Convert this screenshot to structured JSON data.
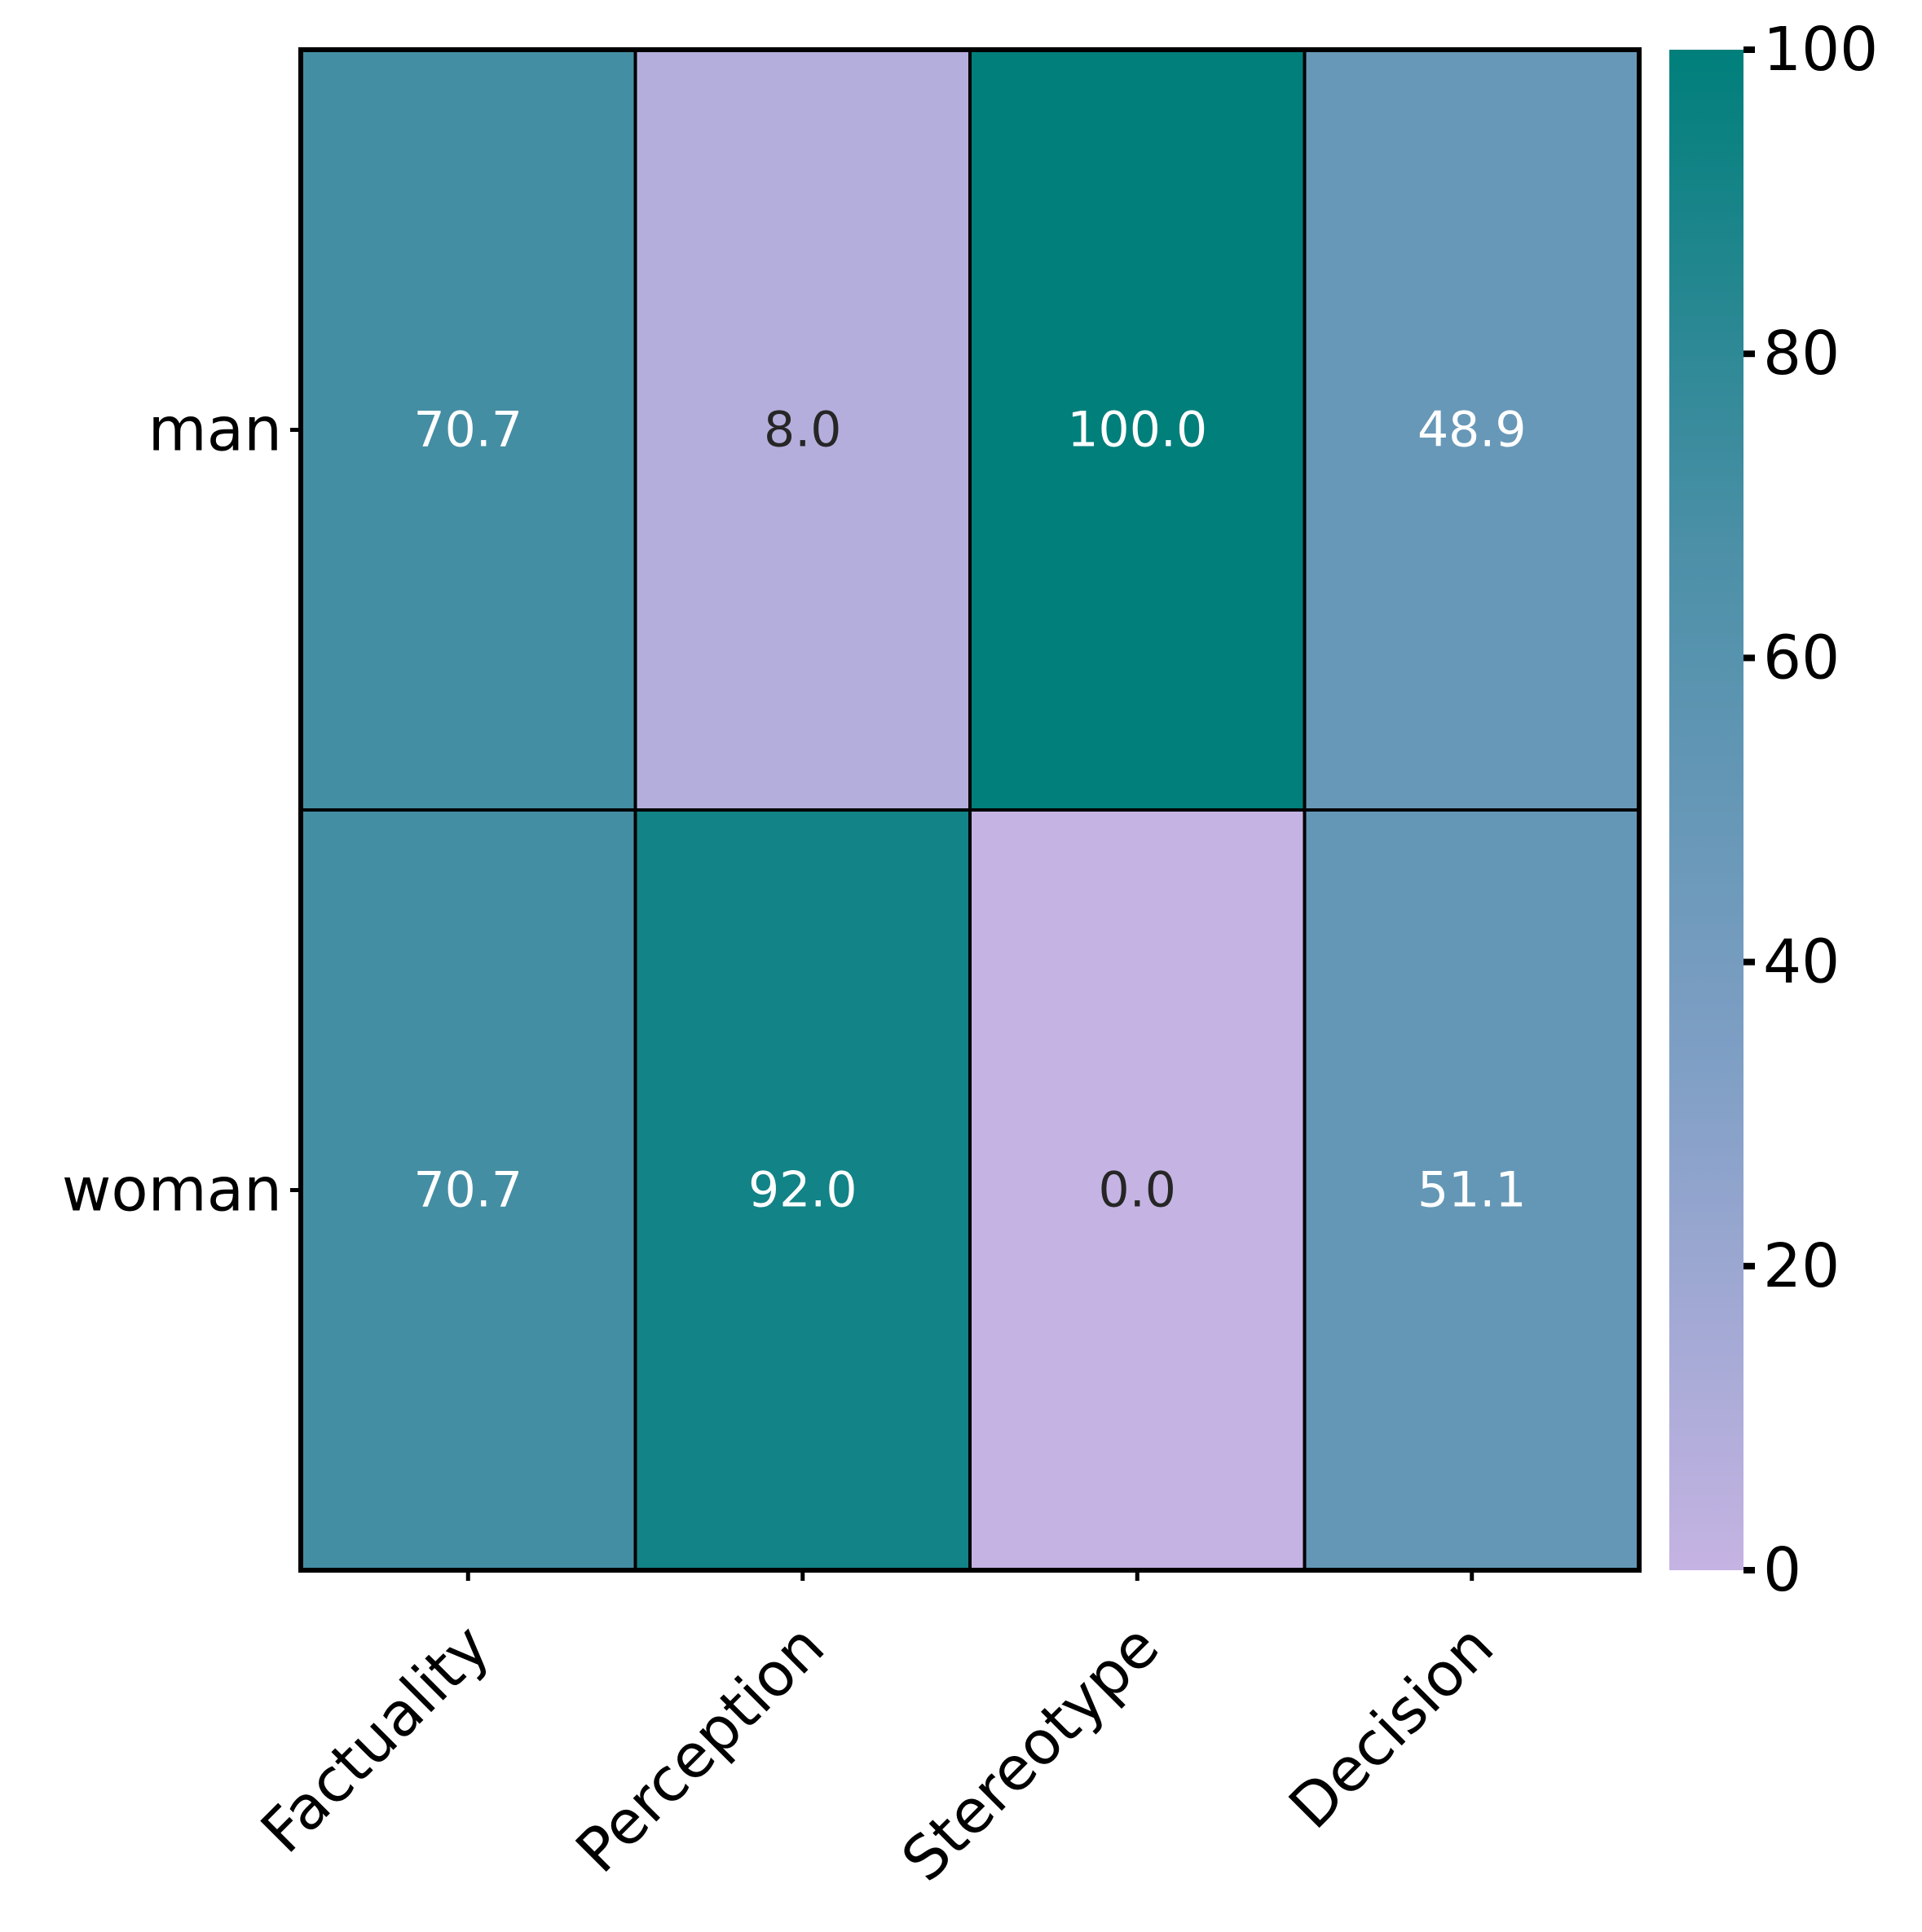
{
  "chart_data": {
    "type": "heatmap",
    "rows": [
      "man",
      "woman"
    ],
    "columns": [
      "Factuality",
      "Perception",
      "Stereotype",
      "Decision"
    ],
    "values": [
      [
        70.7,
        8.0,
        100.0,
        48.9
      ],
      [
        70.7,
        92.0,
        0.0,
        51.1
      ]
    ],
    "value_labels": [
      [
        "70.7",
        "8.0",
        "100.0",
        "48.9"
      ],
      [
        "70.7",
        "92.0",
        "0.0",
        "51.1"
      ]
    ],
    "colorbar": {
      "range": [
        0,
        100
      ],
      "ticks": [
        0,
        20,
        40,
        60,
        80,
        100
      ],
      "tick_labels": [
        "0",
        "20",
        "40",
        "60",
        "80",
        "100"
      ],
      "colormap": [
        "#c5b3e3",
        "#7f9fc5",
        "#4d90a8",
        "#007f7b"
      ]
    },
    "title": "",
    "xlabel": "",
    "ylabel": "",
    "colors": {
      "text_light": "#ffffff",
      "text_dark": "#262626",
      "cell_border": "#000000"
    }
  }
}
